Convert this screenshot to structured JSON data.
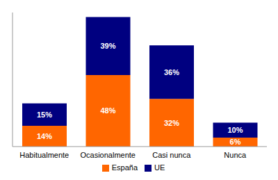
{
  "chart_data": {
    "type": "bar",
    "stacked": true,
    "data_labels": true,
    "tick_labels": "x",
    "legend": "bottom",
    "grid": false,
    "categories": [
      "Habitualmente",
      "Ocasionalmente",
      "Casi nunca",
      "Nunca"
    ],
    "series": [
      {
        "name": "España",
        "color": "#ff6600",
        "values": [
          14,
          48,
          32,
          6
        ],
        "value_labels": [
          "14%",
          "48%",
          "32%",
          "6%"
        ]
      },
      {
        "name": "UE",
        "color": "#000080",
        "values": [
          15,
          39,
          36,
          10
        ],
        "value_labels": [
          "15%",
          "39%",
          "36%",
          "10%"
        ]
      }
    ],
    "ylim": [
      0,
      90
    ]
  }
}
